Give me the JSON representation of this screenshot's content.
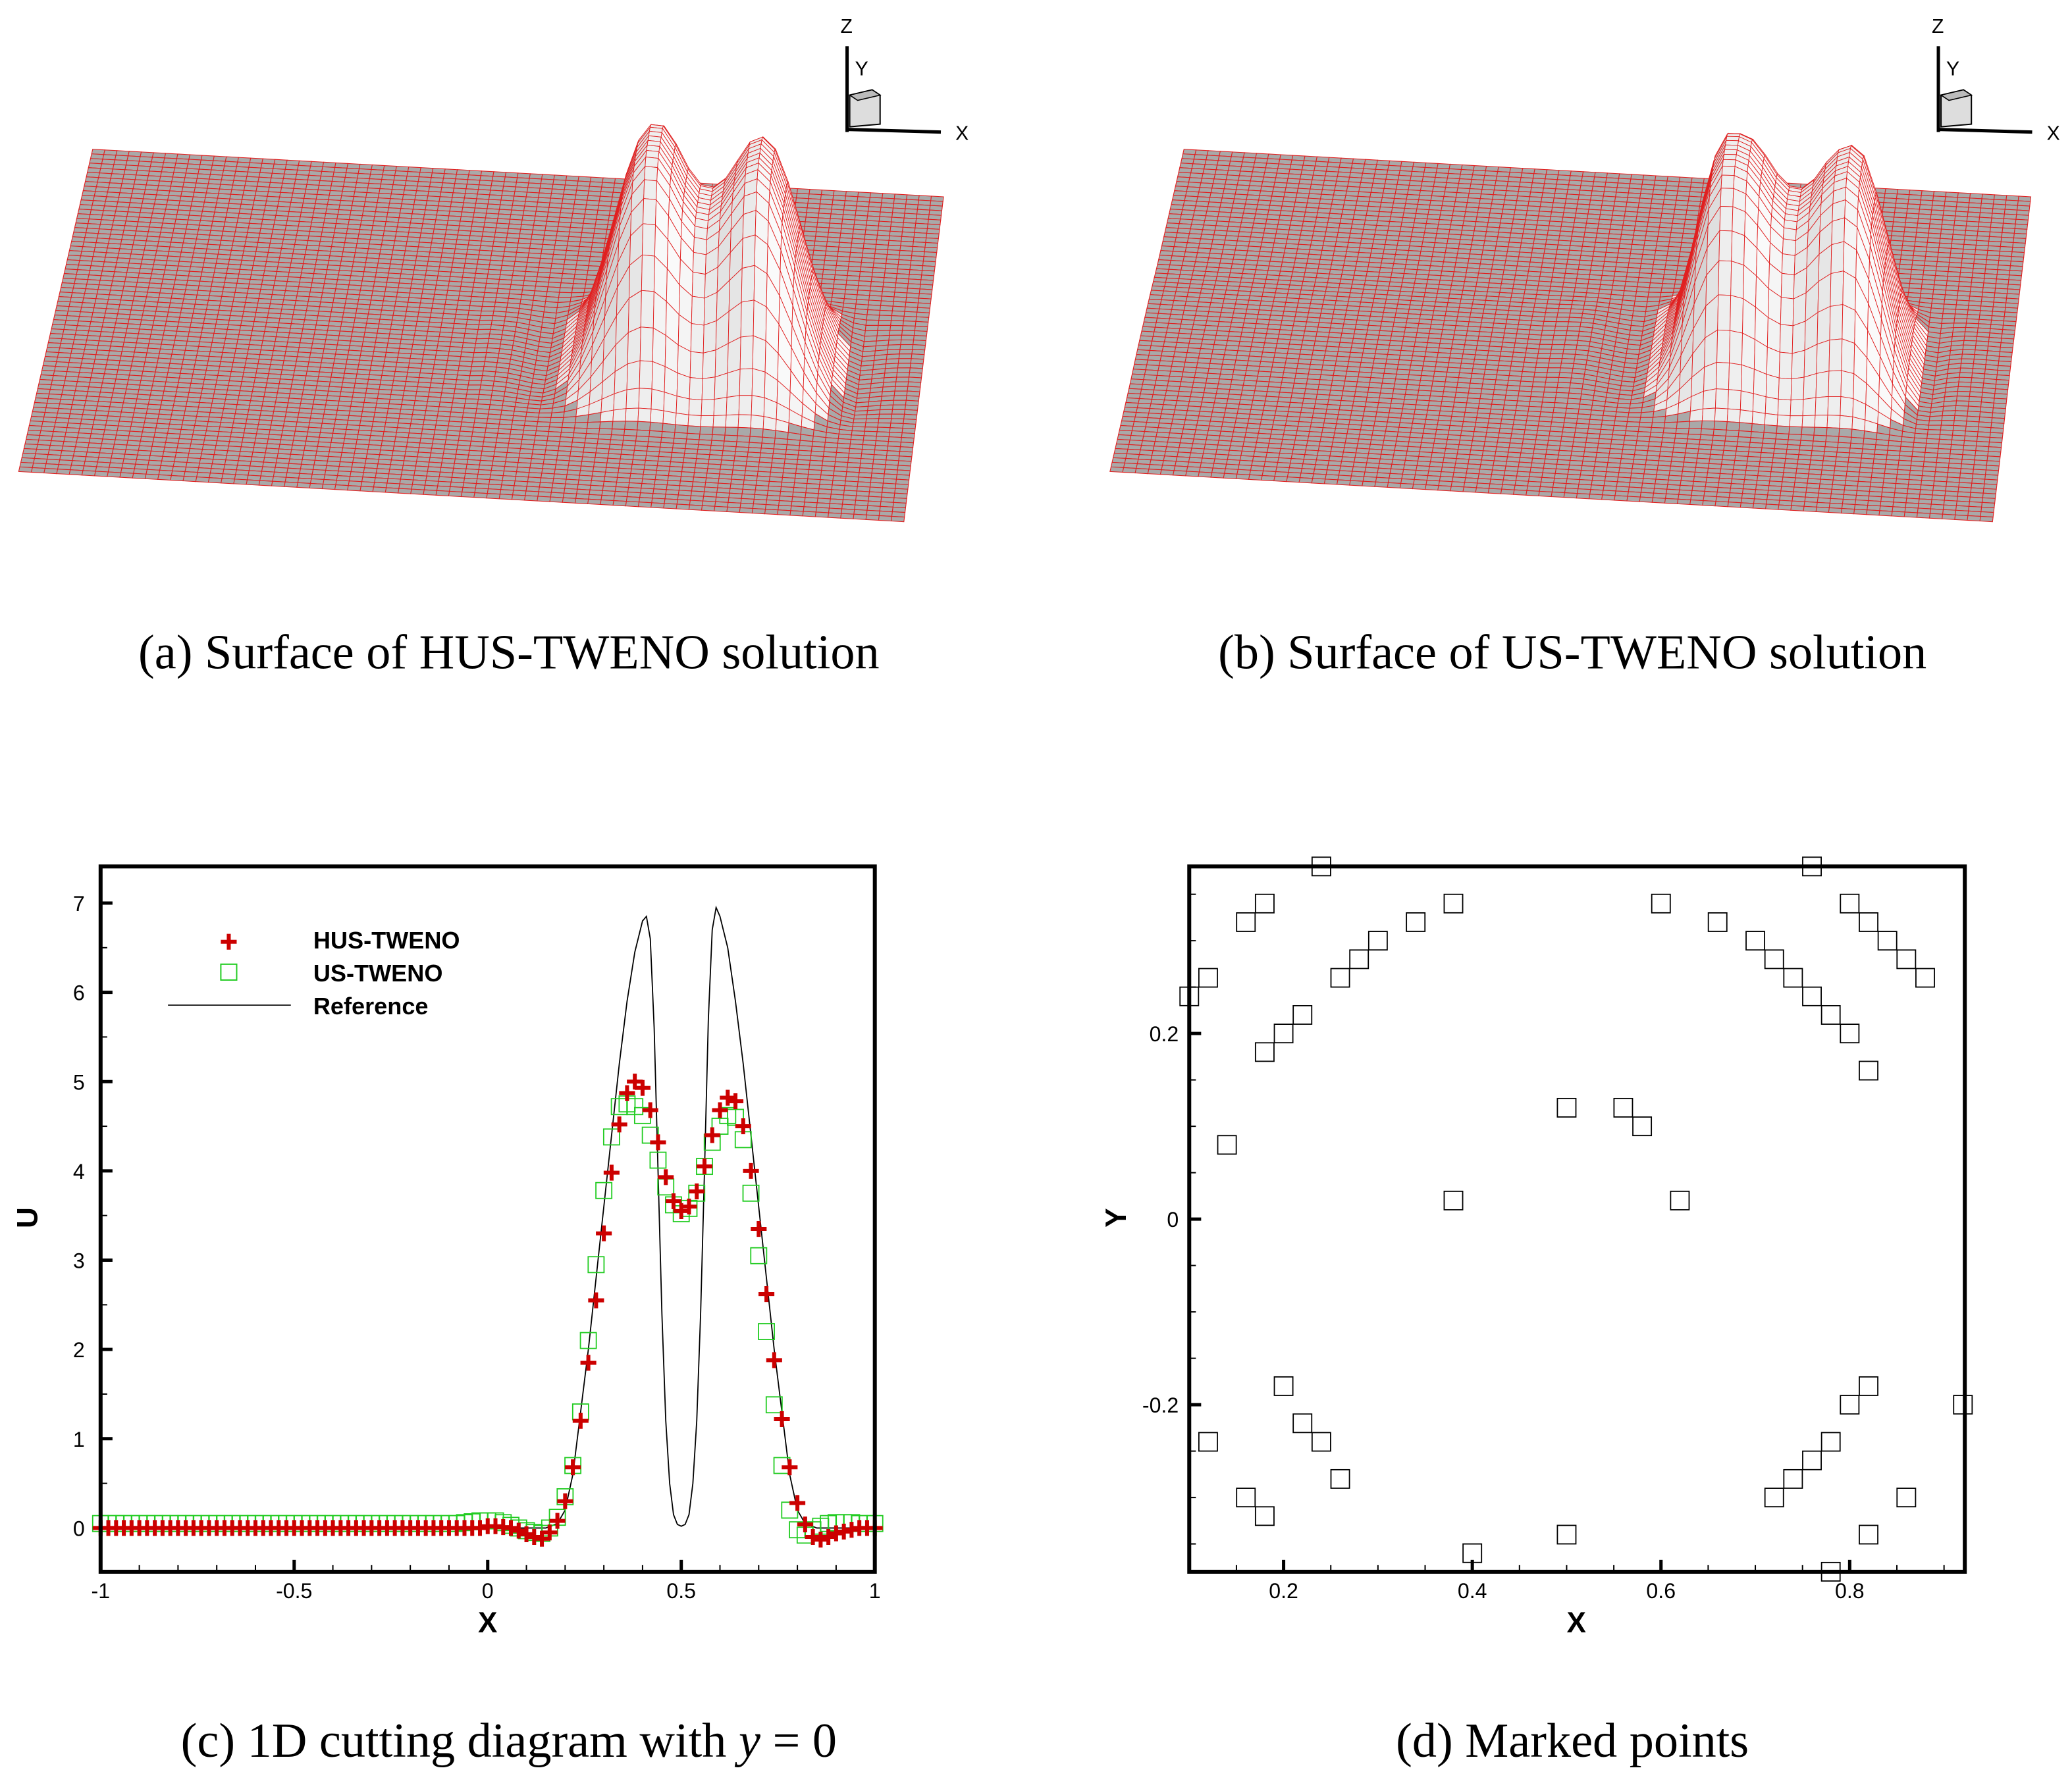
{
  "captions": {
    "a": "(a) Surface of HUS-TWENO solution",
    "b": "(b) Surface of US-TWENO solution",
    "c_prefix": "(c) 1D cutting diagram with ",
    "c_var": "y",
    "c_eq": " = 0",
    "d": "(d) Marked points"
  },
  "axes_triad": {
    "x": "X",
    "y": "Y",
    "z": "Z"
  },
  "colors": {
    "hus": "#cc0000",
    "us": "#22cc22",
    "reference": "#000000",
    "mesh": "#e02020",
    "marker": "#000000"
  },
  "chart_data": [
    {
      "type": "line",
      "title": "1D cutting diagram with y = 0",
      "xlabel": "X",
      "ylabel": "U",
      "xlim": [
        -1,
        1
      ],
      "ylim": [
        -0.49,
        7.41
      ],
      "xticks": [
        "-1",
        "-0.5",
        "0",
        "0.5",
        "1"
      ],
      "xtick_values": [
        -1,
        -0.5,
        0,
        0.5,
        1
      ],
      "yticks": [
        "0",
        "1",
        "2",
        "3",
        "4",
        "5",
        "6",
        "7"
      ],
      "ytick_values": [
        0,
        1,
        2,
        3,
        4,
        5,
        6,
        7
      ],
      "legend": {
        "placement": "top-left",
        "entries": [
          "HUS-TWENO",
          "US-TWENO",
          "Reference"
        ]
      },
      "x": [
        -1,
        -0.98,
        -0.96,
        -0.94,
        -0.92,
        -0.9,
        -0.88,
        -0.86,
        -0.84,
        -0.82,
        -0.8,
        -0.78,
        -0.76,
        -0.74,
        -0.72,
        -0.7,
        -0.68,
        -0.66,
        -0.64,
        -0.62,
        -0.6,
        -0.58,
        -0.56,
        -0.54,
        -0.52,
        -0.5,
        -0.48,
        -0.46,
        -0.44,
        -0.42,
        -0.4,
        -0.38,
        -0.36,
        -0.34,
        -0.32,
        -0.3,
        -0.28,
        -0.26,
        -0.24,
        -0.22,
        -0.2,
        -0.18,
        -0.16,
        -0.14,
        -0.12,
        -0.1,
        -0.08,
        -0.06,
        -0.04,
        -0.02,
        0,
        0.02,
        0.04,
        0.06,
        0.08,
        0.1,
        0.12,
        0.14,
        0.16,
        0.18,
        0.2,
        0.22,
        0.24,
        0.26,
        0.28,
        0.3,
        0.32,
        0.34,
        0.36,
        0.38,
        0.4,
        0.42,
        0.44,
        0.46,
        0.48,
        0.5,
        0.52,
        0.54,
        0.56,
        0.58,
        0.6,
        0.62,
        0.64,
        0.66,
        0.68,
        0.7,
        0.72,
        0.74,
        0.76,
        0.78,
        0.8,
        0.82,
        0.84,
        0.86,
        0.88,
        0.9,
        0.92,
        0.94,
        0.96,
        0.98,
        1
      ],
      "series": [
        {
          "name": "HUS-TWENO",
          "marker": "plus",
          "values": [
            0,
            0,
            0,
            0,
            0,
            0,
            0,
            0,
            0,
            0,
            0,
            0,
            0,
            0,
            0,
            0,
            0,
            0,
            0,
            0,
            0,
            0,
            0,
            0,
            0,
            0,
            0,
            0,
            0,
            0,
            0,
            0,
            0,
            0,
            0,
            0,
            0,
            0,
            0,
            0,
            0,
            0,
            0,
            0,
            0,
            0,
            0,
            0,
            0,
            0,
            0.02,
            0.02,
            0.01,
            0,
            -0.03,
            -0.07,
            -0.1,
            -0.12,
            -0.05,
            0.08,
            0.3,
            0.68,
            1.2,
            1.85,
            2.55,
            3.3,
            3.98,
            4.52,
            4.87,
            5.0,
            4.93,
            4.68,
            4.32,
            3.93,
            3.66,
            3.55,
            3.6,
            3.77,
            4.05,
            4.4,
            4.68,
            4.82,
            4.78,
            4.5,
            4.0,
            3.35,
            2.62,
            1.88,
            1.22,
            0.68,
            0.28,
            0.04,
            -0.1,
            -0.13,
            -0.1,
            -0.06,
            -0.04,
            -0.02,
            0,
            0,
            0
          ]
        },
        {
          "name": "US-TWENO",
          "marker": "square",
          "values": [
            0.05,
            0.05,
            0.05,
            0.05,
            0.05,
            0.05,
            0.05,
            0.05,
            0.05,
            0.05,
            0.05,
            0.05,
            0.05,
            0.05,
            0.05,
            0.05,
            0.05,
            0.05,
            0.05,
            0.05,
            0.05,
            0.05,
            0.05,
            0.05,
            0.05,
            0.05,
            0.05,
            0.05,
            0.05,
            0.05,
            0.05,
            0.05,
            0.05,
            0.05,
            0.05,
            0.05,
            0.05,
            0.05,
            0.05,
            0.05,
            0.05,
            0.05,
            0.05,
            0.05,
            0.05,
            0.05,
            0.05,
            0.06,
            0.07,
            0.08,
            0.08,
            0.08,
            0.06,
            0.03,
            0,
            -0.03,
            -0.05,
            -0.06,
            0,
            0.12,
            0.35,
            0.7,
            1.3,
            2.1,
            2.95,
            3.78,
            4.38,
            4.72,
            4.75,
            4.72,
            4.62,
            4.4,
            4.12,
            3.82,
            3.62,
            3.52,
            3.58,
            3.75,
            4.05,
            4.32,
            4.5,
            4.62,
            4.6,
            4.35,
            3.75,
            3.05,
            2.2,
            1.38,
            0.7,
            0.2,
            -0.02,
            -0.08,
            -0.02,
            0.02,
            0.05,
            0.06,
            0.06,
            0.06,
            0.05,
            0.05,
            0.05
          ]
        }
      ],
      "reference": {
        "name": "Reference",
        "x": [
          -1,
          0,
          0.15,
          0.18,
          0.2,
          0.22,
          0.24,
          0.26,
          0.28,
          0.3,
          0.32,
          0.34,
          0.36,
          0.38,
          0.4,
          0.41,
          0.42,
          0.43,
          0.44,
          0.45,
          0.46,
          0.47,
          0.48,
          0.49,
          0.5,
          0.51,
          0.52,
          0.53,
          0.54,
          0.55,
          0.56,
          0.57,
          0.58,
          0.59,
          0.6,
          0.62,
          0.64,
          0.66,
          0.68,
          0.7,
          0.72,
          0.74,
          0.76,
          0.78,
          0.8,
          0.82,
          0.85,
          1
        ],
        "values": [
          0,
          0,
          0,
          0.05,
          0.2,
          0.6,
          1.3,
          2.0,
          2.8,
          3.6,
          4.4,
          5.2,
          5.9,
          6.45,
          6.8,
          6.85,
          6.6,
          5.6,
          4.0,
          2.4,
          1.2,
          0.5,
          0.15,
          0.04,
          0.02,
          0.04,
          0.15,
          0.5,
          1.2,
          2.4,
          4.0,
          5.7,
          6.7,
          6.95,
          6.85,
          6.5,
          5.9,
          5.2,
          4.4,
          3.6,
          2.8,
          2.0,
          1.3,
          0.6,
          0.2,
          0.05,
          0,
          0
        ]
      }
    },
    {
      "type": "scatter",
      "title": "Marked points",
      "xlabel": "X",
      "ylabel": "Y",
      "xlim": [
        0.1,
        0.922
      ],
      "ylim": [
        -0.38,
        0.38
      ],
      "xticks": [
        "0.2",
        "0.4",
        "0.6",
        "0.8"
      ],
      "xtick_values": [
        0.2,
        0.4,
        0.6,
        0.8
      ],
      "yticks": [
        "-0.2",
        "0",
        "0.2"
      ],
      "ytick_values": [
        -0.2,
        0,
        0.2
      ],
      "points": [
        [
          0.24,
          0.38
        ],
        [
          0.76,
          0.38
        ],
        [
          0.18,
          0.34
        ],
        [
          0.16,
          0.32
        ],
        [
          0.38,
          0.34
        ],
        [
          0.6,
          0.34
        ],
        [
          0.34,
          0.32
        ],
        [
          0.66,
          0.32
        ],
        [
          0.8,
          0.34
        ],
        [
          0.82,
          0.32
        ],
        [
          0.84,
          0.3
        ],
        [
          0.86,
          0.28
        ],
        [
          0.88,
          0.26
        ],
        [
          0.3,
          0.3
        ],
        [
          0.28,
          0.28
        ],
        [
          0.26,
          0.26
        ],
        [
          0.12,
          0.26
        ],
        [
          0.1,
          0.24
        ],
        [
          0.7,
          0.3
        ],
        [
          0.72,
          0.28
        ],
        [
          0.74,
          0.26
        ],
        [
          0.76,
          0.24
        ],
        [
          0.78,
          0.22
        ],
        [
          0.8,
          0.2
        ],
        [
          0.22,
          0.22
        ],
        [
          0.2,
          0.2
        ],
        [
          0.18,
          0.18
        ],
        [
          0.82,
          0.16
        ],
        [
          0.5,
          0.12
        ],
        [
          0.56,
          0.12
        ],
        [
          0.58,
          0.1
        ],
        [
          0.14,
          0.08
        ],
        [
          0.38,
          0.02
        ],
        [
          0.62,
          0.02
        ],
        [
          0.2,
          -0.18
        ],
        [
          0.82,
          -0.18
        ],
        [
          0.8,
          -0.2
        ],
        [
          0.92,
          -0.2
        ],
        [
          0.22,
          -0.22
        ],
        [
          0.24,
          -0.24
        ],
        [
          0.12,
          -0.24
        ],
        [
          0.78,
          -0.24
        ],
        [
          0.76,
          -0.26
        ],
        [
          0.74,
          -0.28
        ],
        [
          0.26,
          -0.28
        ],
        [
          0.72,
          -0.3
        ],
        [
          0.16,
          -0.3
        ],
        [
          0.86,
          -0.3
        ],
        [
          0.18,
          -0.32
        ],
        [
          0.5,
          -0.34
        ],
        [
          0.82,
          -0.34
        ],
        [
          0.4,
          -0.36
        ],
        [
          0.78,
          -0.38
        ]
      ]
    }
  ]
}
